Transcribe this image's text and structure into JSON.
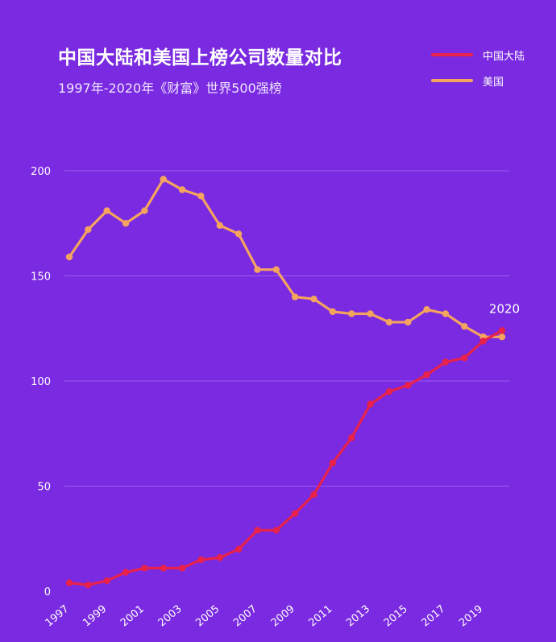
{
  "chart_data": {
    "type": "line",
    "title": "中国大陆和美国上榜公司数量对比",
    "subtitle": "1997年-2020年《财富》世界500强榜",
    "x": [
      1997,
      1998,
      1999,
      2000,
      2001,
      2002,
      2003,
      2004,
      2005,
      2006,
      2007,
      2008,
      2009,
      2010,
      2011,
      2012,
      2013,
      2014,
      2015,
      2016,
      2017,
      2018,
      2019,
      2020
    ],
    "x_tick_labels": [
      "1997",
      "1999",
      "2001",
      "2003",
      "2005",
      "2007",
      "2009",
      "2011",
      "2013",
      "2015",
      "2017",
      "2019"
    ],
    "y_tick_labels": [
      "0",
      "50",
      "100",
      "150",
      "200"
    ],
    "ylim": [
      0,
      200
    ],
    "grid": true,
    "legend_position": "top-right",
    "annotation": "2020",
    "series": [
      {
        "name": "中国大陆",
        "color": "#e8224a",
        "values": [
          4,
          3,
          5,
          9,
          11,
          11,
          11,
          15,
          16,
          20,
          29,
          29,
          37,
          46,
          61,
          73,
          89,
          95,
          98,
          103,
          109,
          111,
          119,
          124
        ]
      },
      {
        "name": "美国",
        "color": "#f4a45e",
        "values": [
          159,
          172,
          181,
          175,
          181,
          196,
          191,
          188,
          174,
          170,
          153,
          153,
          140,
          139,
          133,
          132,
          132,
          128,
          128,
          134,
          132,
          126,
          121,
          121
        ]
      }
    ]
  }
}
